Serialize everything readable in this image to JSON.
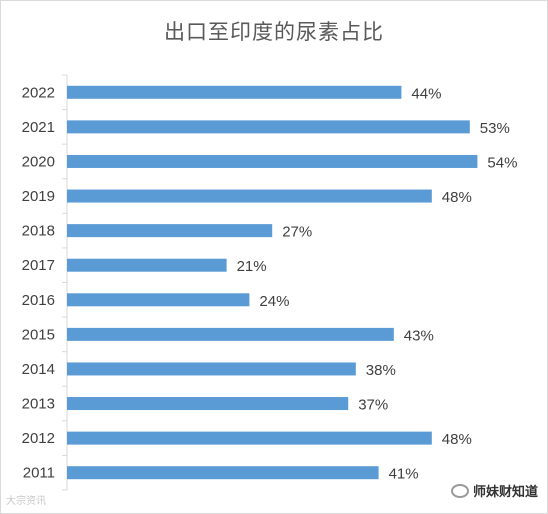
{
  "chart_data": {
    "type": "bar",
    "orientation": "horizontal",
    "title": "出口至印度的尿素占比",
    "categories": [
      "2022",
      "2021",
      "2020",
      "2019",
      "2018",
      "2017",
      "2016",
      "2015",
      "2014",
      "2013",
      "2012",
      "2011"
    ],
    "values": [
      44,
      53,
      54,
      48,
      27,
      21,
      24,
      43,
      38,
      37,
      48,
      41
    ],
    "value_suffix": "%",
    "xlim": [
      0,
      60
    ],
    "color": "#5b9bd5",
    "grid": false,
    "legend": "none"
  },
  "watermarks": {
    "left": "大宗资讯",
    "right": "师妹财知道"
  }
}
